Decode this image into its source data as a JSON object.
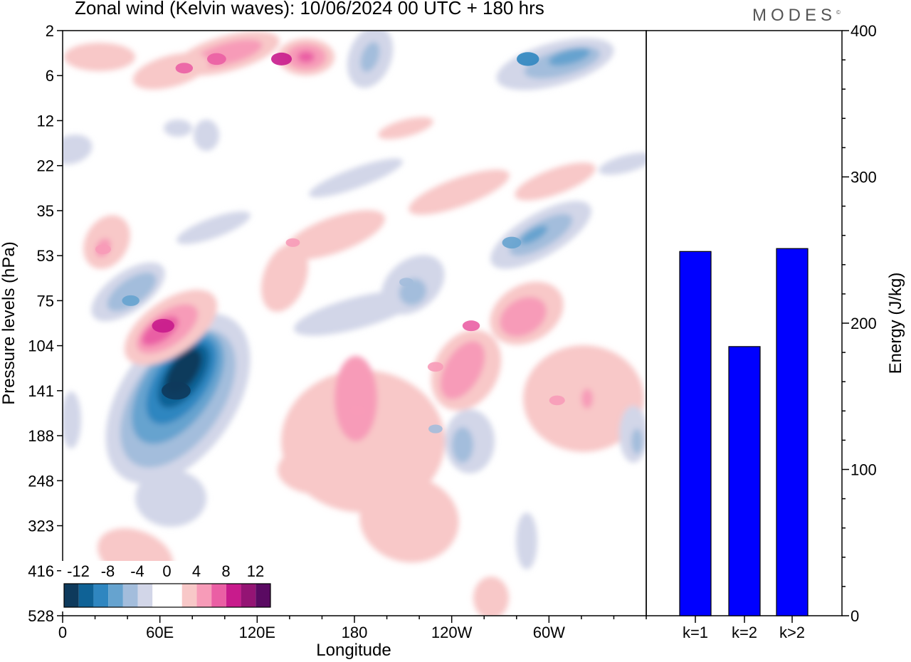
{
  "title": "Zonal wind (Kelvin waves):  10/06/2024  00 UTC  + 180 hrs",
  "logo": "MODES",
  "logo_mark": "©",
  "colors": {
    "bar": "#0000ff",
    "scale": [
      "#0e3a5c",
      "#0f6296",
      "#2f86c0",
      "#66a3cf",
      "#a3bddc",
      "#d2d6e8",
      "#ffffff",
      "#ffffff",
      "#f8c8c8",
      "#f79bb8",
      "#ea5fa4",
      "#c81b8c",
      "#941474",
      "#5a0a62"
    ]
  },
  "chart_data": [
    {
      "type": "heatmap",
      "title": "Zonal wind (Kelvin waves):  10/06/2024  00 UTC  + 180 hrs",
      "xlabel": "Longitude",
      "ylabel": "Pressure levels (hPa)",
      "x_ticks": [
        "0",
        "60E",
        "120E",
        "180",
        "120W",
        "60W"
      ],
      "y_ticks": [
        "2",
        "6",
        "12",
        "22",
        "35",
        "53",
        "75",
        "104",
        "141",
        "188",
        "248",
        "323",
        "416",
        "528"
      ],
      "colorbar_labels": [
        "-12",
        "-8",
        "-4",
        "0",
        "4",
        "8",
        "12"
      ],
      "features": [
        {
          "longitude": 70,
          "pressure": 141,
          "value": -13
        },
        {
          "longitude": 62,
          "pressure": 90,
          "value": 9
        },
        {
          "longitude": 42,
          "pressure": 75,
          "value": -6
        },
        {
          "longitude": 135,
          "pressure": 4,
          "value": 8
        },
        {
          "longitude": 95,
          "pressure": 4,
          "value": 7
        },
        {
          "longitude": 75,
          "pressure": 5,
          "value": 6
        },
        {
          "longitude": 287,
          "pressure": 4,
          "value": -9
        },
        {
          "longitude": 277,
          "pressure": 47,
          "value": -7
        },
        {
          "longitude": 182,
          "pressure": 160,
          "value": 5
        },
        {
          "longitude": 252,
          "pressure": 90,
          "value": 6
        },
        {
          "longitude": 230,
          "pressure": 120,
          "value": 5
        },
        {
          "longitude": 212,
          "pressure": 65,
          "value": -4
        },
        {
          "longitude": 305,
          "pressure": 150,
          "value": 5
        },
        {
          "longitude": 230,
          "pressure": 180,
          "value": -4
        },
        {
          "longitude": 142,
          "pressure": 47,
          "value": 4
        },
        {
          "longitude": 25,
          "pressure": 50,
          "value": 5
        }
      ]
    },
    {
      "type": "bar",
      "categories": [
        "k=1",
        "k=2",
        "k>2"
      ],
      "values": [
        249,
        184,
        251
      ],
      "ylabel": "Energy (J/kg)",
      "ylim": [
        0,
        400
      ],
      "y_ticks": [
        "0",
        "100",
        "200",
        "300",
        "400"
      ]
    }
  ]
}
